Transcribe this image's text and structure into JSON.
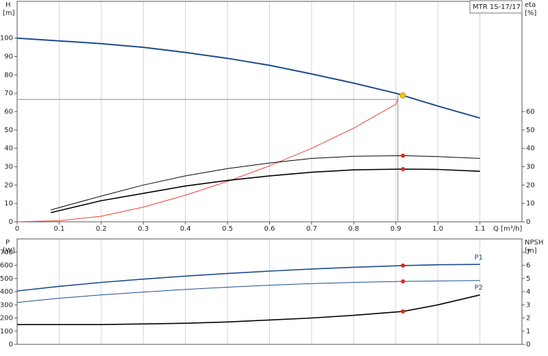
{
  "chart_data": [
    {
      "type": "line",
      "title": "MTR 1S-17/17",
      "y_label": "H",
      "y_unit": "[m]",
      "y2_label": "eta",
      "y2_unit": "[%]",
      "x_label": "Q [m³/h]",
      "xlim": [
        0,
        1.2
      ],
      "ylim": [
        0,
        120
      ],
      "y2lim": [
        0,
        120
      ],
      "xticks": [
        0,
        0.1,
        0.2,
        0.3,
        0.4,
        0.5,
        0.6,
        0.7,
        0.8,
        0.9,
        {
          "value": 1,
          "label": "1.0"
        },
        1.1
      ],
      "yticks": [
        0,
        10,
        20,
        30,
        40,
        50,
        60,
        70,
        80,
        90,
        100
      ],
      "y2ticks": [
        0,
        10,
        20,
        30,
        40,
        50,
        60
      ],
      "grid": true,
      "series": [
        {
          "color": "#1c4b8c",
          "width": 2,
          "x": [
            0,
            0.1,
            0.2,
            0.3,
            0.4,
            0.5,
            0.6,
            0.7,
            0.8,
            0.9,
            0.917,
            1.0,
            1.1
          ],
          "values": [
            100,
            98.5,
            97,
            95,
            92.2,
            89,
            85.2,
            80.5,
            75.5,
            70,
            68.8,
            63,
            56.5
          ]
        },
        {
          "color": "#f03c32",
          "width": 1,
          "x": [
            0,
            0.1,
            0.2,
            0.3,
            0.4,
            0.5,
            0.6,
            0.7,
            0.8,
            0.9,
            0.905
          ],
          "values": [
            0,
            0.6,
            3,
            8,
            14.5,
            22,
            30.5,
            40,
            51,
            64,
            66.6
          ]
        },
        {
          "color": "#000000",
          "width": 1,
          "axis": "y2",
          "x": [
            0.08,
            0.2,
            0.3,
            0.4,
            0.5,
            0.6,
            0.7,
            0.8,
            0.917,
            1.0,
            1.1
          ],
          "values": [
            6.5,
            14,
            20,
            25,
            29,
            32,
            34.5,
            35.7,
            36,
            35.5,
            34.5
          ]
        },
        {
          "color": "#000000",
          "width": 1.6,
          "axis": "y2",
          "x": [
            0.08,
            0.2,
            0.3,
            0.4,
            0.5,
            0.6,
            0.7,
            0.8,
            0.917,
            1.0,
            1.1
          ],
          "values": [
            5,
            11.5,
            15.5,
            19.5,
            22.5,
            25,
            27,
            28.3,
            28.7,
            28.5,
            27.5
          ]
        }
      ],
      "guides": {
        "x": 0.905,
        "y": 66.6
      },
      "points": [
        {
          "x": 0.917,
          "y": 68.8,
          "color": "#f7c600"
        },
        {
          "x": 0.917,
          "y": 36,
          "axis": "y2",
          "color": "#e8221b"
        },
        {
          "x": 0.917,
          "y": 28.7,
          "axis": "y2",
          "color": "#e8221b"
        }
      ]
    },
    {
      "type": "line",
      "y_label": "P",
      "y_unit": "[W]",
      "y2_label": "NPSH",
      "y2_unit": "[m]",
      "xlim": [
        0,
        1.2
      ],
      "ylim": [
        0,
        800
      ],
      "y2lim": [
        0,
        8
      ],
      "yticks": [
        0,
        100,
        200,
        300,
        400,
        500,
        600,
        700
      ],
      "y2ticks": [
        0,
        1,
        2,
        3,
        4,
        5,
        6,
        7
      ],
      "grid": true,
      "series": [
        {
          "name": "P1",
          "color": "#1c4b8c",
          "width": 1.6,
          "x": [
            0,
            0.1,
            0.2,
            0.3,
            0.4,
            0.5,
            0.6,
            0.7,
            0.8,
            0.917,
            1.0,
            1.1
          ],
          "values": [
            405,
            440,
            470,
            495,
            518,
            538,
            556,
            572,
            585,
            598,
            604,
            607
          ]
        },
        {
          "name": "P2",
          "color": "#1c4b8c",
          "width": 1,
          "x": [
            0,
            0.1,
            0.2,
            0.3,
            0.4,
            0.5,
            0.6,
            0.7,
            0.8,
            0.917,
            1.0,
            1.1
          ],
          "values": [
            318,
            350,
            375,
            397,
            417,
            434,
            449,
            461,
            470,
            478,
            481,
            484
          ]
        },
        {
          "color": "#000000",
          "width": 1.6,
          "axis": "y2",
          "x": [
            0,
            0.2,
            0.3,
            0.4,
            0.5,
            0.6,
            0.7,
            0.8,
            0.917,
            1.0,
            1.1
          ],
          "values": [
            1.5,
            1.5,
            1.55,
            1.6,
            1.7,
            1.85,
            2.0,
            2.2,
            2.5,
            3.0,
            3.75
          ]
        }
      ],
      "points": [
        {
          "x": 0.917,
          "y": 598,
          "color": "#e8221b"
        },
        {
          "x": 0.917,
          "y": 478,
          "color": "#e8221b"
        },
        {
          "x": 0.917,
          "y": 2.5,
          "axis": "y2",
          "color": "#e8221b"
        }
      ]
    }
  ]
}
